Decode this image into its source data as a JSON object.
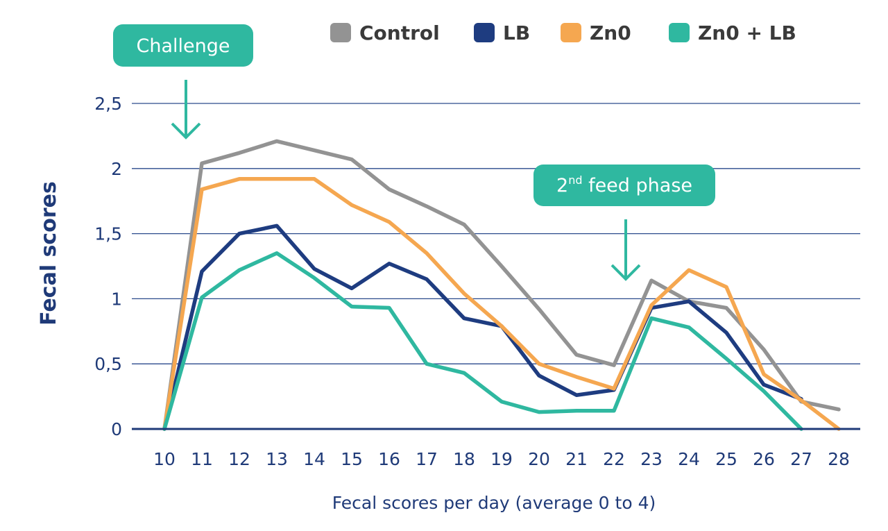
{
  "chart_data": {
    "type": "line",
    "title": "",
    "xlabel": "Fecal scores per day (average 0 to 4)",
    "ylabel": "Fecal scores",
    "x": [
      10,
      11,
      12,
      13,
      14,
      15,
      16,
      17,
      18,
      19,
      20,
      21,
      22,
      23,
      24,
      25,
      26,
      27,
      28
    ],
    "x_tick_labels": [
      "10",
      "11",
      "12",
      "13",
      "14",
      "15",
      "16",
      "17",
      "18",
      "19",
      "20",
      "21",
      "22",
      "23",
      "24",
      "25",
      "26",
      "27",
      "28"
    ],
    "y_tick_values": [
      0,
      0.5,
      1,
      1.5,
      2,
      2.5
    ],
    "y_tick_labels": [
      "0",
      "0,5",
      "1",
      "1,5",
      "2",
      "2,5"
    ],
    "ylim": [
      0,
      2.5
    ],
    "grid": true,
    "legend_position": "top",
    "series": [
      {
        "name": "Control",
        "color": "#939393",
        "values": [
          0,
          2.04,
          2.12,
          2.21,
          2.14,
          2.07,
          1.84,
          1.71,
          1.57,
          1.25,
          0.92,
          0.57,
          0.49,
          1.14,
          0.98,
          0.93,
          0.61,
          0.21,
          0.15
        ]
      },
      {
        "name": "LB",
        "color": "#1e3c80",
        "values": [
          0,
          1.21,
          1.5,
          1.56,
          1.23,
          1.08,
          1.27,
          1.15,
          0.85,
          0.79,
          0.41,
          0.26,
          0.3,
          0.93,
          0.98,
          0.74,
          0.34,
          0.23,
          null
        ]
      },
      {
        "name": "Zn0",
        "color": "#f5a750",
        "values": [
          0,
          1.84,
          1.92,
          1.92,
          1.92,
          1.72,
          1.59,
          1.35,
          1.04,
          0.79,
          0.5,
          0.4,
          0.31,
          0.95,
          1.22,
          1.09,
          0.42,
          0.22,
          0
        ]
      },
      {
        "name": "Zn0 + LB",
        "color": "#2fb8a0",
        "values": [
          0,
          1.01,
          1.22,
          1.35,
          1.16,
          0.94,
          0.93,
          0.5,
          0.43,
          0.21,
          0.13,
          0.14,
          0.14,
          0.85,
          0.78,
          0.54,
          0.29,
          0,
          null
        ]
      }
    ],
    "annotations": [
      {
        "text": "Challenge",
        "x": 10.5,
        "kind": "arrow"
      },
      {
        "text_main": "2",
        "text_sup": "nd",
        "text_rest": " feed phase",
        "x": 22.2,
        "kind": "arrow"
      }
    ]
  }
}
